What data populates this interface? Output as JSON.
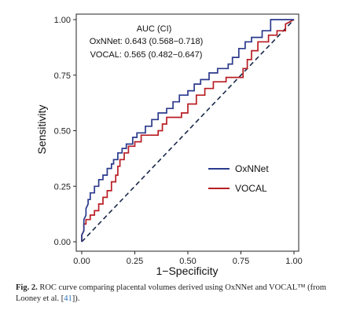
{
  "chart_data": {
    "type": "line",
    "xlabel": "1−Specificity",
    "ylabel": "Sensitivity",
    "xlim": [
      0,
      1
    ],
    "ylim": [
      0,
      1
    ],
    "xticks": [
      "0.00",
      "0.25",
      "0.50",
      "0.75",
      "1.00"
    ],
    "yticks": [
      "0.00",
      "0.25",
      "0.50",
      "0.75",
      "1.00"
    ],
    "grid": false,
    "legend_position": "bottom-right",
    "annotation": {
      "header": "AUC (CI)",
      "lines": [
        "OxNNet: 0.643 (0.568−0.718)",
        "VOCAL: 0.565 (0.482−0.647)"
      ]
    },
    "series": [
      {
        "name": "OxNNet",
        "color": "#2b3a8c",
        "points": [
          [
            0,
            0
          ],
          [
            0,
            0.03
          ],
          [
            0.01,
            0.05
          ],
          [
            0.01,
            0.1
          ],
          [
            0.02,
            0.12
          ],
          [
            0.02,
            0.15
          ],
          [
            0.03,
            0.17
          ],
          [
            0.03,
            0.19
          ],
          [
            0.04,
            0.19
          ],
          [
            0.04,
            0.22
          ],
          [
            0.06,
            0.22
          ],
          [
            0.06,
            0.25
          ],
          [
            0.08,
            0.25
          ],
          [
            0.08,
            0.28
          ],
          [
            0.1,
            0.28
          ],
          [
            0.1,
            0.3
          ],
          [
            0.12,
            0.3
          ],
          [
            0.12,
            0.33
          ],
          [
            0.14,
            0.33
          ],
          [
            0.14,
            0.35
          ],
          [
            0.15,
            0.35
          ],
          [
            0.15,
            0.37
          ],
          [
            0.17,
            0.37
          ],
          [
            0.17,
            0.4
          ],
          [
            0.19,
            0.4
          ],
          [
            0.19,
            0.42
          ],
          [
            0.21,
            0.42
          ],
          [
            0.21,
            0.44
          ],
          [
            0.24,
            0.44
          ],
          [
            0.24,
            0.47
          ],
          [
            0.26,
            0.47
          ],
          [
            0.26,
            0.49
          ],
          [
            0.3,
            0.49
          ],
          [
            0.3,
            0.52
          ],
          [
            0.33,
            0.52
          ],
          [
            0.33,
            0.55
          ],
          [
            0.36,
            0.55
          ],
          [
            0.36,
            0.58
          ],
          [
            0.4,
            0.58
          ],
          [
            0.4,
            0.6
          ],
          [
            0.43,
            0.6
          ],
          [
            0.43,
            0.63
          ],
          [
            0.46,
            0.63
          ],
          [
            0.46,
            0.66
          ],
          [
            0.5,
            0.66
          ],
          [
            0.5,
            0.68
          ],
          [
            0.53,
            0.68
          ],
          [
            0.53,
            0.71
          ],
          [
            0.56,
            0.71
          ],
          [
            0.56,
            0.73
          ],
          [
            0.6,
            0.73
          ],
          [
            0.6,
            0.76
          ],
          [
            0.64,
            0.76
          ],
          [
            0.64,
            0.78
          ],
          [
            0.69,
            0.78
          ],
          [
            0.69,
            0.8
          ],
          [
            0.71,
            0.8
          ],
          [
            0.71,
            0.83
          ],
          [
            0.74,
            0.83
          ],
          [
            0.74,
            0.87
          ],
          [
            0.77,
            0.87
          ],
          [
            0.77,
            0.9
          ],
          [
            0.8,
            0.9
          ],
          [
            0.8,
            0.92
          ],
          [
            0.85,
            0.92
          ],
          [
            0.85,
            0.95
          ],
          [
            0.89,
            0.95
          ],
          [
            0.89,
            1
          ],
          [
            1,
            1
          ]
        ]
      },
      {
        "name": "VOCAL",
        "color": "#b81e24",
        "points": [
          [
            0,
            0
          ],
          [
            0,
            0.03
          ],
          [
            0.01,
            0.05
          ],
          [
            0.01,
            0.08
          ],
          [
            0.02,
            0.08
          ],
          [
            0.02,
            0.1
          ],
          [
            0.04,
            0.1
          ],
          [
            0.04,
            0.12
          ],
          [
            0.06,
            0.12
          ],
          [
            0.06,
            0.14
          ],
          [
            0.08,
            0.14
          ],
          [
            0.08,
            0.17
          ],
          [
            0.1,
            0.17
          ],
          [
            0.1,
            0.2
          ],
          [
            0.12,
            0.2
          ],
          [
            0.12,
            0.23
          ],
          [
            0.14,
            0.23
          ],
          [
            0.14,
            0.27
          ],
          [
            0.16,
            0.27
          ],
          [
            0.16,
            0.3
          ],
          [
            0.17,
            0.3
          ],
          [
            0.17,
            0.34
          ],
          [
            0.18,
            0.34
          ],
          [
            0.18,
            0.37
          ],
          [
            0.2,
            0.37
          ],
          [
            0.2,
            0.4
          ],
          [
            0.22,
            0.4
          ],
          [
            0.22,
            0.43
          ],
          [
            0.25,
            0.43
          ],
          [
            0.25,
            0.45
          ],
          [
            0.28,
            0.45
          ],
          [
            0.28,
            0.48
          ],
          [
            0.36,
            0.48
          ],
          [
            0.36,
            0.5
          ],
          [
            0.38,
            0.5
          ],
          [
            0.38,
            0.53
          ],
          [
            0.4,
            0.53
          ],
          [
            0.4,
            0.56
          ],
          [
            0.47,
            0.56
          ],
          [
            0.47,
            0.58
          ],
          [
            0.5,
            0.58
          ],
          [
            0.5,
            0.62
          ],
          [
            0.54,
            0.62
          ],
          [
            0.54,
            0.66
          ],
          [
            0.58,
            0.66
          ],
          [
            0.58,
            0.69
          ],
          [
            0.62,
            0.69
          ],
          [
            0.62,
            0.72
          ],
          [
            0.68,
            0.72
          ],
          [
            0.68,
            0.74
          ],
          [
            0.76,
            0.74
          ],
          [
            0.76,
            0.78
          ],
          [
            0.78,
            0.78
          ],
          [
            0.78,
            0.82
          ],
          [
            0.8,
            0.82
          ],
          [
            0.8,
            0.86
          ],
          [
            0.83,
            0.86
          ],
          [
            0.83,
            0.9
          ],
          [
            0.88,
            0.9
          ],
          [
            0.88,
            0.93
          ],
          [
            0.92,
            0.93
          ],
          [
            0.92,
            0.95
          ],
          [
            0.96,
            0.95
          ],
          [
            0.96,
            0.98
          ],
          [
            1,
            1
          ]
        ]
      }
    ],
    "reference_line": {
      "style": "dashed",
      "color": "#1a2a4a",
      "points": [
        [
          0,
          0
        ],
        [
          1,
          1
        ]
      ]
    }
  },
  "caption": {
    "label": "Fig. 2.",
    "text_before_ref": " ROC curve comparing placental volumes derived using OxNNet and VOCAL™ (from Looney et al. [",
    "ref": "41",
    "text_after_ref": "])."
  }
}
